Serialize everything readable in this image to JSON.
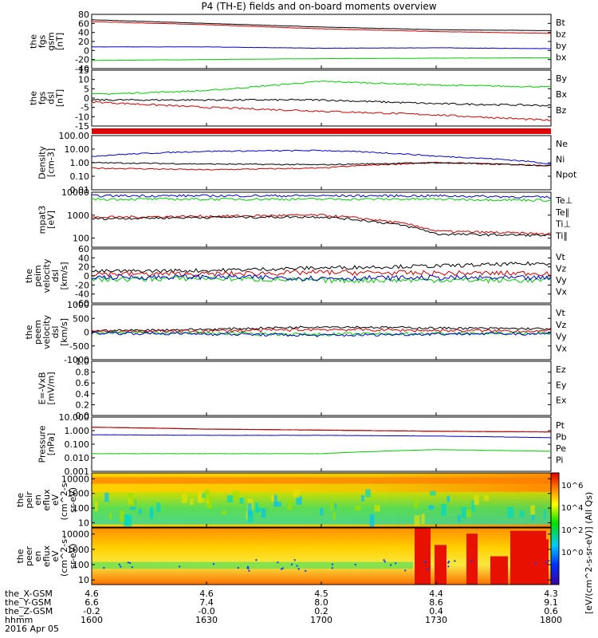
{
  "title": "P4 (TH-E) fields and on-board moments overview",
  "date_label": "2016 Apr 05",
  "colorbar_label": "[eV/(cm^2-s-sr-eV)] (All Qs)",
  "colorbar_ticks": [
    "10^6",
    "10^4",
    "10^2",
    "10^0"
  ],
  "xaxis": {
    "row_labels": [
      "the_X-GSM",
      "the_Y-GSM",
      "the_Z-GSM",
      "hhmm"
    ],
    "columns": [
      {
        "x": "4.6",
        "y": "6.6",
        "z": "-0.2",
        "t": "1600"
      },
      {
        "x": "4.6",
        "y": "7.4",
        "z": "-0.0",
        "t": "1630"
      },
      {
        "x": "4.5",
        "y": "8.0",
        "z": "0.2",
        "t": "1700"
      },
      {
        "x": "4.4",
        "y": "8.6",
        "z": "0.4",
        "t": "1730"
      },
      {
        "x": "4.3",
        "y": "9.1",
        "z": "0.6",
        "t": "1800"
      }
    ]
  },
  "chart_data": [
    {
      "type": "line",
      "panel": "fgs_gsm",
      "ylabel": [
        "the",
        "fgs",
        "gsm",
        "[nT]"
      ],
      "ylim": [
        -40,
        80
      ],
      "yticks": [
        "80",
        "60",
        "40",
        "20",
        "0",
        "-20",
        "-40"
      ],
      "series": [
        {
          "name": "Bt",
          "color": "#000000",
          "values": [
            68,
            60,
            52,
            46,
            44
          ]
        },
        {
          "name": "bz",
          "color": "#cc0000",
          "values": [
            64,
            57,
            48,
            42,
            38
          ]
        },
        {
          "name": "by",
          "color": "#0000cc",
          "values": [
            8,
            8,
            5,
            6,
            4
          ]
        },
        {
          "name": "bx",
          "color": "#00cc00",
          "values": [
            -22,
            -20,
            -18,
            -17,
            -16
          ]
        }
      ]
    },
    {
      "type": "line",
      "panel": "fgs_dsl",
      "ylabel": [
        "the",
        "fgs",
        "dsl",
        "[nT]"
      ],
      "ylim": [
        -15,
        15
      ],
      "yticks": [
        "15",
        "10",
        "5",
        "0",
        "-5",
        "-10",
        "-15"
      ],
      "series": [
        {
          "name": "By",
          "color": "#00cc00",
          "values": [
            2,
            4,
            9,
            7,
            6
          ]
        },
        {
          "name": "Bx",
          "color": "#000000",
          "values": [
            -1,
            -1,
            -1,
            -3,
            -4
          ]
        },
        {
          "name": "Bz",
          "color": "#cc0000",
          "values": [
            -2,
            -5,
            -7,
            -9,
            -12
          ]
        }
      ]
    },
    {
      "type": "line",
      "panel": "density",
      "ylabel": [
        "Density",
        "[cm-3]"
      ],
      "scale": "log",
      "ylim": [
        0.01,
        100
      ],
      "yticks": [
        "100.00",
        "10.00",
        "1.00",
        "0.10",
        "0.01"
      ],
      "series": [
        {
          "name": "Ne",
          "color": "#cc0000",
          "values": [
            0.4,
            0.3,
            0.4,
            1.0,
            0.6
          ]
        },
        {
          "name": "Ni",
          "color": "#000000",
          "values": [
            1.0,
            0.8,
            0.7,
            1.0,
            0.6
          ]
        },
        {
          "name": "Npot",
          "color": "#0000cc",
          "values": [
            3.0,
            7.0,
            8.0,
            3.0,
            0.8
          ]
        }
      ]
    },
    {
      "type": "line",
      "panel": "temperature",
      "ylabel": [
        "mpat3",
        "[eV]"
      ],
      "scale": "log",
      "ylim": [
        40,
        10000
      ],
      "yticks": [
        "10000",
        "1000",
        "100"
      ],
      "series": [
        {
          "name": "Te⊥",
          "color": "#cc0000",
          "values": [
            800,
            900,
            1000,
            200,
            150
          ]
        },
        {
          "name": "Te∥",
          "color": "#000000",
          "values": [
            700,
            800,
            850,
            150,
            130
          ]
        },
        {
          "name": "Ti⊥",
          "color": "#0000cc",
          "values": [
            7000,
            7000,
            7000,
            7000,
            6000
          ]
        },
        {
          "name": "Ti∥",
          "color": "#00cc00",
          "values": [
            5000,
            5000,
            5000,
            5000,
            4500
          ]
        }
      ]
    },
    {
      "type": "line",
      "panel": "peim_velocity",
      "ylabel": [
        "the",
        "peim",
        "velocity",
        "dsl",
        "[km/s]"
      ],
      "ylim": [
        -60,
        60
      ],
      "yticks": [
        "60",
        "40",
        "20",
        "0",
        "-20",
        "-40",
        "-60"
      ],
      "series": [
        {
          "name": "Vt",
          "color": "#000000",
          "values": [
            10,
            12,
            18,
            22,
            28
          ]
        },
        {
          "name": "Vz",
          "color": "#cc0000",
          "values": [
            5,
            4,
            8,
            6,
            6
          ]
        },
        {
          "name": "Vy",
          "color": "#00cc00",
          "values": [
            -8,
            -5,
            -10,
            -9,
            -10
          ]
        },
        {
          "name": "Vx",
          "color": "#0000cc",
          "values": [
            -3,
            -2,
            -5,
            -4,
            -5
          ]
        }
      ]
    },
    {
      "type": "line",
      "panel": "peem_velocity",
      "ylabel": [
        "the",
        "peem",
        "velocity",
        "dsl",
        "[km/s]"
      ],
      "ylim": [
        -1000,
        1000
      ],
      "yticks": [
        "1000",
        "500",
        "0",
        "-500",
        "-1000"
      ],
      "series": [
        {
          "name": "Vt",
          "color": "#000000",
          "values": [
            50,
            100,
            200,
            150,
            120
          ]
        },
        {
          "name": "Vz",
          "color": "#cc0000",
          "values": [
            20,
            40,
            100,
            60,
            40
          ]
        },
        {
          "name": "Vy",
          "color": "#00cc00",
          "values": [
            -20,
            -40,
            -80,
            -50,
            -40
          ]
        },
        {
          "name": "Vx",
          "color": "#0000cc",
          "values": [
            -30,
            -60,
            -120,
            -60,
            -50
          ]
        }
      ]
    },
    {
      "type": "line",
      "panel": "efield",
      "ylabel": [
        "E=-VxB",
        "[mV/m]"
      ],
      "ylim": [
        0,
        1
      ],
      "yticks": [
        "1.0",
        "0.8",
        "0.6",
        "0.4",
        "0.2",
        "0.0"
      ],
      "series": [
        {
          "name": "Ez",
          "color": "#cc0000",
          "values": []
        },
        {
          "name": "Ey",
          "color": "#00cc00",
          "values": []
        },
        {
          "name": "Ex",
          "color": "#0000cc",
          "values": []
        }
      ]
    },
    {
      "type": "line",
      "panel": "pressure",
      "ylabel": [
        "Pressure",
        "[nPa]"
      ],
      "scale": "log",
      "ylim": [
        0.001,
        10
      ],
      "yticks": [
        "10.000",
        "1.000",
        "0.100",
        "0.010",
        "0.001"
      ],
      "series": [
        {
          "name": "Pt",
          "color": "#000000",
          "values": [
            1.8,
            1.3,
            1.1,
            0.9,
            0.8
          ]
        },
        {
          "name": "Pb",
          "color": "#cc0000",
          "values": [
            1.8,
            1.3,
            1.1,
            0.9,
            0.8
          ]
        },
        {
          "name": "Pe",
          "color": "#00cc00",
          "values": [
            0.02,
            0.02,
            0.02,
            0.04,
            0.03
          ]
        },
        {
          "name": "Pi",
          "color": "#0000cc",
          "values": [
            0.5,
            0.45,
            0.45,
            0.4,
            0.3
          ]
        }
      ]
    },
    {
      "type": "heatmap",
      "panel": "peir_spectrogram",
      "ylabel": [
        "the",
        "peir",
        "en",
        "eflux",
        "eV",
        "(cm^2-s-",
        "sr-eV)"
      ],
      "scale": "log",
      "ylim": [
        5,
        25000
      ],
      "yticks": [
        "10000",
        "1000",
        "100",
        "10"
      ],
      "zlim": [
        1,
        1000000
      ]
    },
    {
      "type": "heatmap",
      "panel": "peer_spectrogram",
      "ylabel": [
        "the",
        "peer",
        "en",
        "eflux",
        "eV",
        "(cm^2-s-",
        "sr-eV)"
      ],
      "scale": "log",
      "ylim": [
        5,
        25000
      ],
      "yticks": [
        "10000",
        "1000",
        "100",
        "10"
      ],
      "zlim": [
        1,
        1000000
      ]
    }
  ]
}
